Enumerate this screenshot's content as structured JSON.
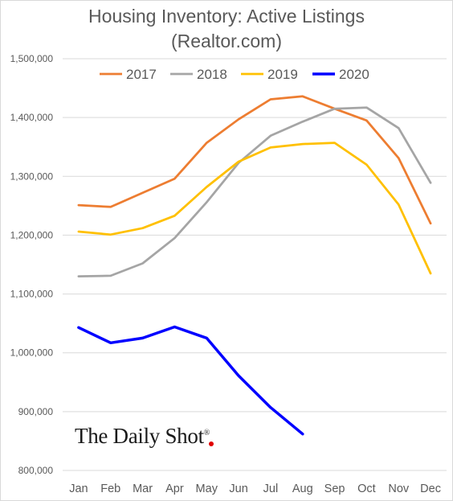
{
  "chart_data": {
    "type": "line",
    "title": "Housing Inventory: Active Listings",
    "subtitle": "(Realtor.com)",
    "xlabel": "",
    "ylabel": "",
    "categories": [
      "Jan",
      "Feb",
      "Mar",
      "Apr",
      "May",
      "Jun",
      "Jul",
      "Aug",
      "Sep",
      "Oct",
      "Nov",
      "Dec"
    ],
    "yticks": [
      "800,000",
      "900,000",
      "1,000,000",
      "1,100,000",
      "1,200,000",
      "1,300,000",
      "1,400,000",
      "1,500,000"
    ],
    "ylim": [
      800000,
      1500000
    ],
    "grid": true,
    "legend_position": "top",
    "series": [
      {
        "name": "2017",
        "color": "#ED7D31",
        "values": [
          1251000,
          1248000,
          1272000,
          1296000,
          1357000,
          1397000,
          1431000,
          1436000,
          1415000,
          1395000,
          1331000,
          1220000
        ]
      },
      {
        "name": "2018",
        "color": "#A5A5A5",
        "values": [
          1130000,
          1131000,
          1152000,
          1195000,
          1256000,
          1323000,
          1369000,
          1393000,
          1415000,
          1417000,
          1382000,
          1289000
        ]
      },
      {
        "name": "2019",
        "color": "#FFC000",
        "values": [
          1206000,
          1201000,
          1212000,
          1233000,
          1282000,
          1325000,
          1349000,
          1355000,
          1357000,
          1320000,
          1252000,
          1135000
        ]
      },
      {
        "name": "2020",
        "color": "#0000FF",
        "values": [
          1043000,
          1017000,
          1025000,
          1044000,
          1025000,
          961000,
          907000,
          862000,
          null,
          null,
          null,
          null
        ]
      }
    ]
  },
  "watermark": {
    "text": "The Daily Shot",
    "mark": "®"
  }
}
